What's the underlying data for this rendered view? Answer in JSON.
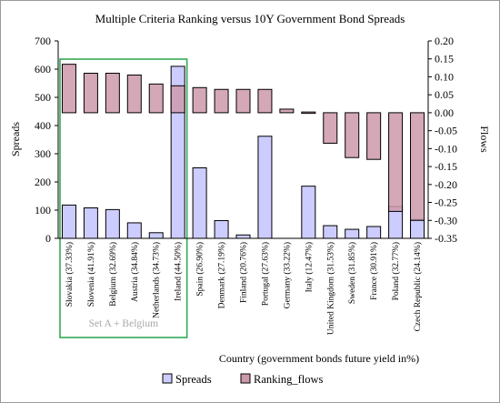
{
  "chart_data": {
    "type": "bar",
    "title": "Multiple Criteria Ranking versus 10Y Government Bond Spreads",
    "xlabel": "Country (government bonds future yield in%)",
    "ylabel_left": "Spreads",
    "ylabel_right": "Flows",
    "ylim_left": [
      0,
      700
    ],
    "yticks_left": [
      0,
      100,
      200,
      300,
      400,
      500,
      600,
      700
    ],
    "ylim_right": [
      -0.35,
      0.2
    ],
    "yticks_right": [
      -0.35,
      -0.3,
      -0.25,
      -0.2,
      -0.15,
      -0.1,
      -0.05,
      0.0,
      0.05,
      0.1,
      0.15,
      0.2
    ],
    "yticks_right_labels": [
      "-0.35",
      "-0.30",
      "-0.25",
      "-0.20",
      "-0.15",
      "-0.10",
      "-0.05",
      "0.00",
      "0.05",
      "0.10",
      "0.15",
      "0.20"
    ],
    "categories": [
      "Slovakia (37.33%)",
      "Slovenia (41.91%)",
      "Belgium (32.69%)",
      "Austria (34.84%)",
      "Netherlands (34.73%)",
      "Ireland (44.50%)",
      "Spain (26.90%)",
      "Denmark (27.19%)",
      "Finland (20.76%)",
      "Portugal (27.63%)",
      "Germany (33.22%)",
      "Italy (12.47%)",
      "United Kingdom (31.53%)",
      "Sweden (31.85%)",
      "France (30.91%)",
      "Poland (32.77%)",
      "Czech Republic (24.14%)"
    ],
    "series": [
      {
        "name": "Spreads",
        "axis": "left",
        "color": "#ccccff",
        "values": [
          118,
          108,
          102,
          55,
          20,
          610,
          250,
          63,
          12,
          362,
          0,
          185,
          45,
          32,
          42,
          113,
          67
        ]
      },
      {
        "name": "Ranking_flows",
        "axis": "right",
        "color": "#cc99aa",
        "values": [
          0.135,
          0.11,
          0.11,
          0.105,
          0.08,
          0.075,
          0.07,
          0.065,
          0.065,
          0.065,
          0.01,
          0.002,
          -0.085,
          -0.125,
          -0.13,
          -0.275,
          -0.3
        ]
      }
    ],
    "grid": false,
    "legend_position": "bottom",
    "highlight_box": {
      "label": "Set A + Belgium",
      "color": "#33aa55",
      "categories": [
        "Slovakia (37.33%)",
        "Slovenia (41.91%)",
        "Belgium (32.69%)",
        "Austria (34.84%)",
        "Netherlands (34.73%)",
        "Ireland (44.50%)"
      ]
    }
  }
}
